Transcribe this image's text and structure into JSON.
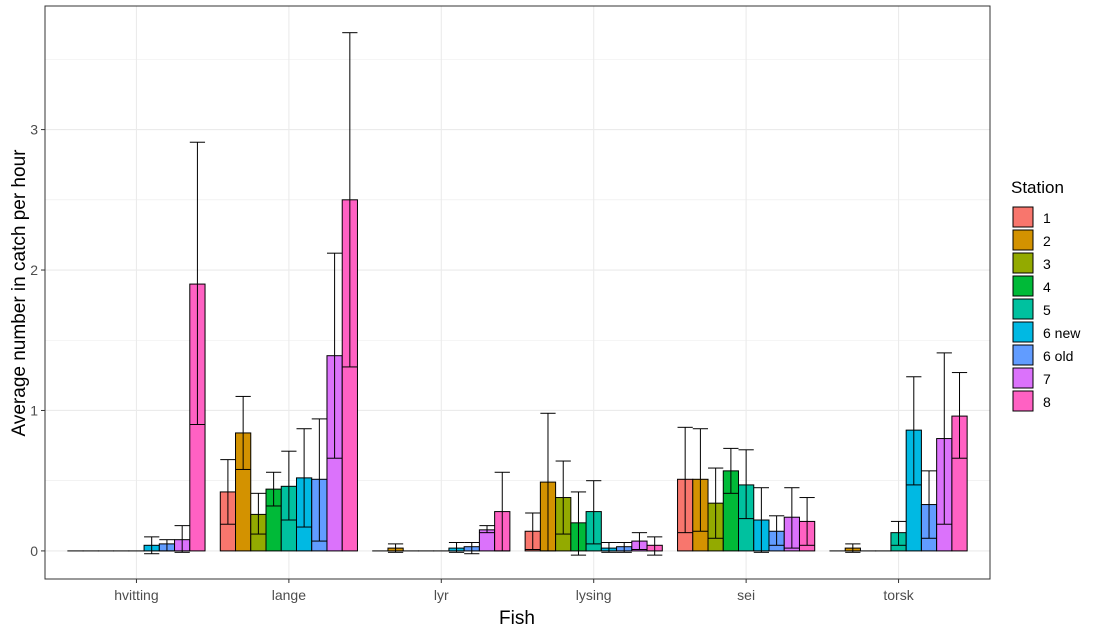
{
  "chart_data": {
    "type": "bar",
    "xlabel": "Fish",
    "ylabel": "Average number in catch per hour",
    "ylim": [
      -0.2,
      3.88
    ],
    "yticks": [
      0,
      1,
      2,
      3
    ],
    "grid": true,
    "legend": {
      "title": "Station",
      "position": "right"
    },
    "categories": [
      "hvitting",
      "lange",
      "lyr",
      "lysing",
      "sei",
      "torsk"
    ],
    "series": [
      {
        "name": "1",
        "color": "#F8766D",
        "values": [
          0,
          0.42,
          0,
          0.14,
          0.51,
          0
        ],
        "err_low": [
          null,
          0.19,
          null,
          0.01,
          0.13,
          null
        ],
        "err_high": [
          null,
          0.65,
          null,
          0.27,
          0.88,
          null
        ]
      },
      {
        "name": "2",
        "color": "#D39200",
        "values": [
          0,
          0.84,
          0.02,
          0.49,
          0.51,
          0.02
        ],
        "err_low": [
          null,
          0.58,
          -0.01,
          0.0,
          0.14,
          -0.01
        ],
        "err_high": [
          null,
          1.1,
          0.05,
          0.98,
          0.87,
          0.05
        ]
      },
      {
        "name": "3",
        "color": "#93AA00",
        "values": [
          0,
          0.26,
          0,
          0.38,
          0.34,
          0
        ],
        "err_low": [
          null,
          0.12,
          null,
          0.12,
          0.09,
          null
        ],
        "err_high": [
          null,
          0.41,
          null,
          0.64,
          0.59,
          null
        ]
      },
      {
        "name": "4",
        "color": "#00BA38",
        "values": [
          0,
          0.44,
          0,
          0.2,
          0.57,
          0
        ],
        "err_low": [
          null,
          0.32,
          null,
          -0.03,
          0.41,
          null
        ],
        "err_high": [
          null,
          0.56,
          null,
          0.42,
          0.73,
          null
        ]
      },
      {
        "name": "5",
        "color": "#00C19F",
        "values": [
          0,
          0.46,
          0,
          0.28,
          0.47,
          0.13
        ],
        "err_low": [
          null,
          0.22,
          null,
          0.05,
          0.23,
          0.04
        ],
        "err_high": [
          null,
          0.71,
          null,
          0.5,
          0.72,
          0.21
        ]
      },
      {
        "name": "6 new",
        "color": "#00B9E3",
        "values": [
          0.04,
          0.52,
          0.02,
          0.02,
          0.22,
          0.86
        ],
        "err_low": [
          -0.02,
          0.17,
          -0.01,
          -0.01,
          -0.01,
          0.47
        ],
        "err_high": [
          0.1,
          0.87,
          0.06,
          0.06,
          0.45,
          1.24
        ]
      },
      {
        "name": "6 old",
        "color": "#619CFF",
        "values": [
          0.05,
          0.51,
          0.03,
          0.03,
          0.14,
          0.33
        ],
        "err_low": [
          0.0,
          0.07,
          -0.02,
          -0.01,
          0.04,
          0.09
        ],
        "err_high": [
          0.08,
          0.94,
          0.06,
          0.06,
          0.25,
          0.57
        ]
      },
      {
        "name": "7",
        "color": "#DB72FB",
        "values": [
          0.08,
          1.39,
          0.15,
          0.07,
          0.24,
          0.8
        ],
        "err_low": [
          -0.01,
          0.66,
          0.13,
          0.01,
          0.02,
          0.19
        ],
        "err_high": [
          0.18,
          2.12,
          0.18,
          0.13,
          0.45,
          1.41
        ]
      },
      {
        "name": "8",
        "color": "#FF61C3",
        "values": [
          1.9,
          2.5,
          0.28,
          0.04,
          0.21,
          0.96
        ],
        "err_low": [
          0.9,
          1.31,
          0.0,
          -0.03,
          0.04,
          0.66
        ],
        "err_high": [
          2.91,
          3.69,
          0.56,
          0.1,
          0.38,
          1.27
        ]
      }
    ]
  }
}
